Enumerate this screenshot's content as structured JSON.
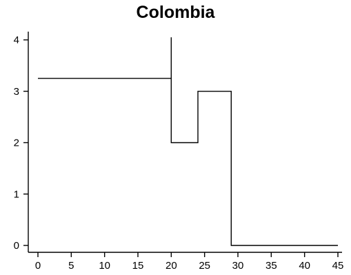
{
  "chart_data": {
    "type": "line",
    "title": "Colombia",
    "xlabel": "",
    "ylabel": "",
    "xlim": [
      0,
      45
    ],
    "ylim": [
      0,
      4
    ],
    "x_ticks": [
      0,
      5,
      10,
      15,
      20,
      25,
      30,
      35,
      40,
      45
    ],
    "y_ticks": [
      0,
      1,
      2,
      3,
      4
    ],
    "grid": false,
    "step": true,
    "series": [
      {
        "points": [
          [
            0,
            3.25
          ],
          [
            20,
            3.25
          ],
          [
            20,
            4.05
          ],
          [
            20,
            2.0
          ],
          [
            24,
            2.0
          ],
          [
            24,
            3.0
          ],
          [
            29,
            3.0
          ],
          [
            29,
            0.0
          ],
          [
            45,
            0.0
          ]
        ]
      }
    ]
  }
}
